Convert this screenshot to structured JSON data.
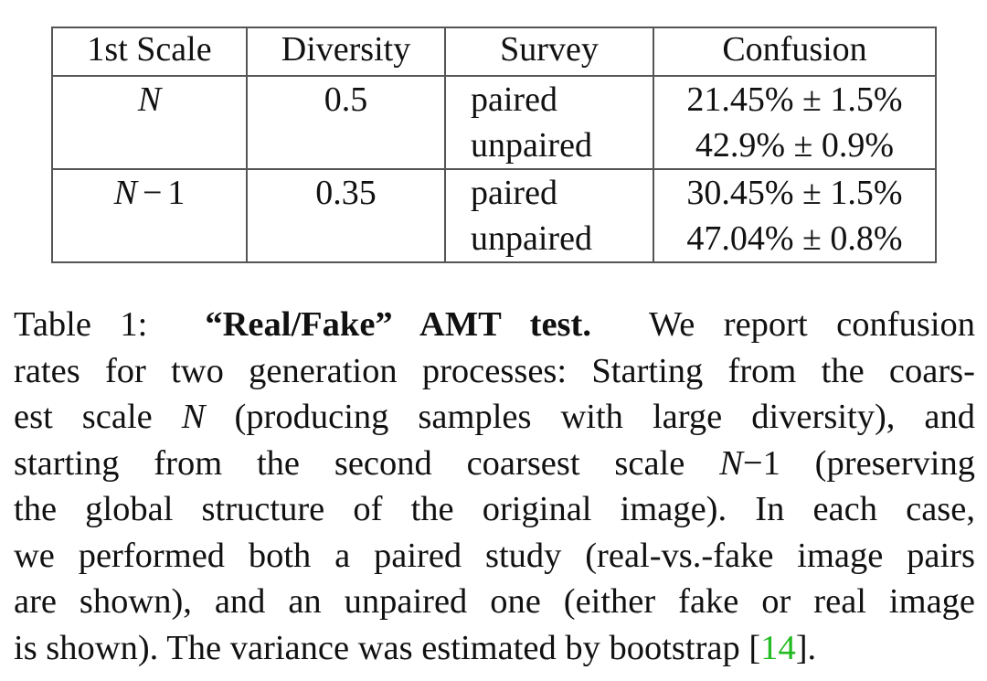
{
  "table": {
    "headers": [
      "1st Scale",
      "Diversity",
      "Survey",
      "Confusion"
    ],
    "rows": [
      {
        "scale_var": "N",
        "scale_suffix": "",
        "diversity": "0.5",
        "entries": [
          {
            "survey": "paired",
            "confusion": "21.45% ± 1.5%"
          },
          {
            "survey": "unpaired",
            "confusion": "42.9% ± 0.9%"
          }
        ]
      },
      {
        "scale_var": "N",
        "scale_suffix": "1",
        "diversity": "0.35",
        "entries": [
          {
            "survey": "paired",
            "confusion": "30.45% ± 1.5%"
          },
          {
            "survey": "unpaired",
            "confusion": "47.04% ± 0.8%"
          }
        ]
      }
    ]
  },
  "caption": {
    "label": "Table 1:",
    "title": "“Real/Fake” AMT test.",
    "l1_rest": "We report confusion",
    "l2": "rates for two generation processes: Starting from the coars-",
    "l3_a": "est scale",
    "l3_var": "N",
    "l3_b": "(producing samples with large diversity), and",
    "l4_a": "starting from the second coarsest scale",
    "l4_var": "N",
    "l4_minus": "−",
    "l4_num": "1",
    "l4_b": "(preserving",
    "l5": "the global structure of the original image).  In each case,",
    "l6": "we performed both a paired study (real-vs.-fake image pairs",
    "l7": "are shown), and an unpaired one (either fake or real image",
    "l8_a": "is shown). The variance was estimated by bootstrap [",
    "l8_cite": "14",
    "l8_b": "]."
  }
}
